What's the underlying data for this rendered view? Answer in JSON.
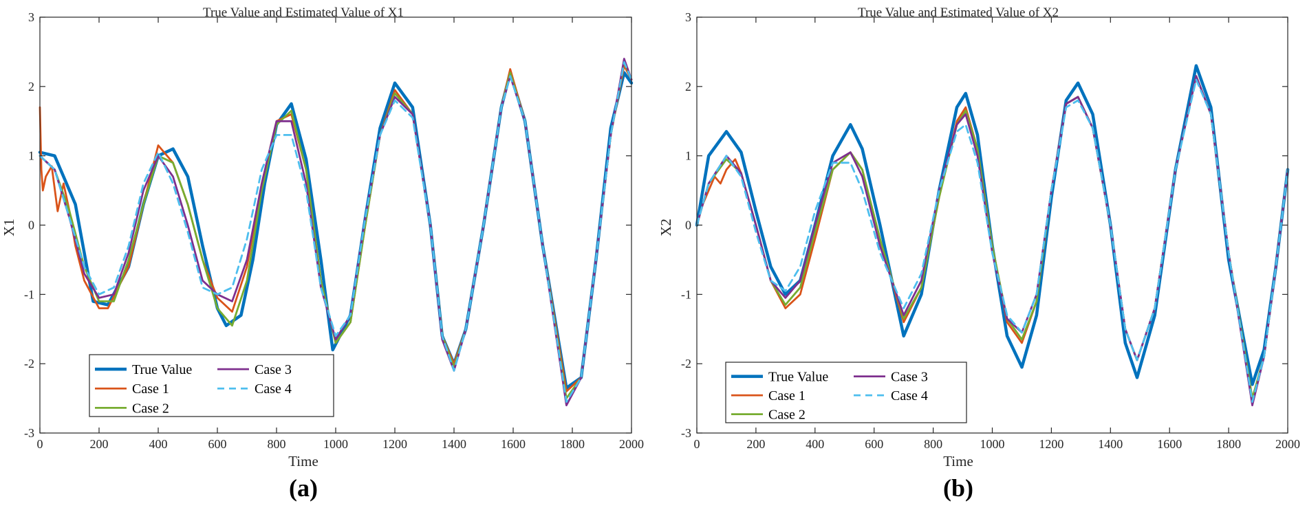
{
  "chart_data": [
    {
      "type": "line",
      "panel_label": "(a)",
      "title": "True Value and Estimated Value of X1",
      "xlabel": "Time",
      "ylabel": "X1",
      "xlim": [
        0,
        2000
      ],
      "ylim": [
        -3,
        3
      ],
      "xticks": [
        0,
        200,
        400,
        600,
        800,
        1000,
        1200,
        1400,
        1600,
        1800,
        2000
      ],
      "yticks": [
        -3,
        -2,
        -1,
        0,
        1,
        2,
        3
      ],
      "grid": false,
      "legend_position": "bottom-left",
      "series": [
        {
          "name": "True Value",
          "color": "#0072BD",
          "style": "solid",
          "width": "thick",
          "x": [
            0,
            50,
            120,
            180,
            230,
            300,
            350,
            400,
            450,
            500,
            550,
            600,
            630,
            680,
            720,
            760,
            800,
            850,
            900,
            950,
            990,
            1050,
            1100,
            1150,
            1200,
            1260,
            1320,
            1360,
            1400,
            1440,
            1500,
            1560,
            1590,
            1640,
            1700,
            1780,
            1830,
            1880,
            1930,
            1975,
            2000
          ],
          "y": [
            1.05,
            1.0,
            0.3,
            -1.1,
            -1.15,
            -0.6,
            0.3,
            1.0,
            1.1,
            0.7,
            -0.3,
            -1.2,
            -1.45,
            -1.3,
            -0.5,
            0.6,
            1.45,
            1.75,
            0.95,
            -0.5,
            -1.8,
            -1.3,
            0.1,
            1.4,
            2.05,
            1.7,
            0.0,
            -1.6,
            -2.0,
            -1.5,
            0.0,
            1.7,
            2.2,
            1.5,
            -0.3,
            -2.35,
            -2.2,
            -0.5,
            1.4,
            2.2,
            2.05
          ]
        },
        {
          "name": "Case 1",
          "color": "#D95319",
          "style": "solid",
          "width": "normal",
          "x": [
            0,
            5,
            10,
            20,
            40,
            60,
            80,
            100,
            120,
            150,
            200,
            230,
            300,
            350,
            400,
            450,
            500,
            550,
            600,
            650,
            700,
            750,
            800,
            850,
            900,
            950,
            1000,
            1050,
            1100,
            1150,
            1200,
            1260,
            1320,
            1360,
            1400,
            1440,
            1500,
            1560,
            1590,
            1640,
            1700,
            1780,
            1830,
            1880,
            1930,
            1975,
            2000
          ],
          "y": [
            1.7,
            0.8,
            0.5,
            0.7,
            0.85,
            0.2,
            0.6,
            0.2,
            -0.3,
            -0.8,
            -1.2,
            -1.2,
            -0.6,
            0.3,
            1.15,
            0.9,
            0.3,
            -0.5,
            -1.05,
            -1.25,
            -0.6,
            0.6,
            1.5,
            1.6,
            0.8,
            -0.8,
            -1.7,
            -1.4,
            0.0,
            1.3,
            1.95,
            1.6,
            0.0,
            -1.6,
            -2.0,
            -1.5,
            0.0,
            1.7,
            2.25,
            1.5,
            -0.3,
            -2.4,
            -2.2,
            -0.5,
            1.3,
            2.3,
            2.1
          ]
        },
        {
          "name": "Case 2",
          "color": "#77AC30",
          "style": "solid",
          "width": "normal",
          "x": [
            0,
            50,
            100,
            150,
            200,
            250,
            300,
            350,
            400,
            450,
            500,
            550,
            600,
            650,
            700,
            750,
            800,
            850,
            900,
            950,
            1000,
            1050,
            1100,
            1150,
            1200,
            1260,
            1320,
            1360,
            1400,
            1440,
            1500,
            1560,
            1590,
            1640,
            1700,
            1780,
            1830,
            1880,
            1930,
            1975,
            2000
          ],
          "y": [
            1.0,
            0.8,
            0.2,
            -0.6,
            -1.1,
            -1.1,
            -0.5,
            0.3,
            1.0,
            0.9,
            0.3,
            -0.5,
            -1.2,
            -1.45,
            -0.8,
            0.5,
            1.45,
            1.65,
            0.8,
            -0.8,
            -1.7,
            -1.4,
            0.0,
            1.3,
            1.9,
            1.6,
            0.0,
            -1.6,
            -2.05,
            -1.5,
            0.0,
            1.7,
            2.2,
            1.5,
            -0.3,
            -2.5,
            -2.2,
            -0.5,
            1.3,
            2.35,
            2.1
          ]
        },
        {
          "name": "Case 3",
          "color": "#7E2F8E",
          "style": "solid",
          "width": "normal",
          "x": [
            0,
            50,
            100,
            150,
            200,
            250,
            300,
            350,
            400,
            450,
            500,
            550,
            600,
            650,
            700,
            750,
            800,
            850,
            900,
            950,
            1000,
            1050,
            1100,
            1150,
            1200,
            1260,
            1320,
            1360,
            1400,
            1440,
            1500,
            1560,
            1590,
            1640,
            1700,
            1780,
            1830,
            1880,
            1930,
            1975,
            2000
          ],
          "y": [
            1.0,
            0.8,
            0.1,
            -0.7,
            -1.05,
            -1.0,
            -0.4,
            0.5,
            1.0,
            0.7,
            0.0,
            -0.8,
            -1.0,
            -1.1,
            -0.5,
            0.6,
            1.5,
            1.5,
            0.6,
            -0.9,
            -1.65,
            -1.3,
            0.1,
            1.3,
            1.85,
            1.6,
            0.0,
            -1.65,
            -2.1,
            -1.5,
            0.0,
            1.7,
            2.15,
            1.5,
            -0.3,
            -2.6,
            -2.2,
            -0.5,
            1.3,
            2.4,
            2.1
          ]
        },
        {
          "name": "Case 4",
          "color": "#4DBEEE",
          "style": "dashed",
          "width": "normal",
          "x": [
            0,
            50,
            100,
            150,
            200,
            250,
            300,
            350,
            400,
            450,
            500,
            550,
            600,
            650,
            700,
            750,
            800,
            850,
            900,
            950,
            1000,
            1050,
            1100,
            1150,
            1200,
            1260,
            1320,
            1360,
            1400,
            1440,
            1500,
            1560,
            1590,
            1640,
            1700,
            1780,
            1830,
            1880,
            1930,
            1975,
            2000
          ],
          "y": [
            1.0,
            0.8,
            0.1,
            -0.6,
            -1.0,
            -0.9,
            -0.3,
            0.6,
            1.05,
            0.6,
            -0.1,
            -0.9,
            -1.0,
            -0.9,
            -0.2,
            0.8,
            1.3,
            1.3,
            0.5,
            -0.9,
            -1.6,
            -1.3,
            0.1,
            1.3,
            1.8,
            1.55,
            0.0,
            -1.6,
            -2.1,
            -1.5,
            0.0,
            1.7,
            2.15,
            1.5,
            -0.3,
            -2.55,
            -2.2,
            -0.5,
            1.3,
            2.35,
            2.1
          ]
        }
      ]
    },
    {
      "type": "line",
      "panel_label": "(b)",
      "title": "True Value and Estimated Value of X2",
      "xlabel": "Time",
      "ylabel": "X2",
      "xlim": [
        0,
        2000
      ],
      "ylim": [
        -3,
        3
      ],
      "xticks": [
        0,
        200,
        400,
        600,
        800,
        1000,
        1200,
        1400,
        1600,
        1800,
        2000
      ],
      "yticks": [
        -3,
        -2,
        -1,
        0,
        1,
        2,
        3
      ],
      "grid": false,
      "legend_position": "bottom-left",
      "series": [
        {
          "name": "True Value",
          "color": "#0072BD",
          "style": "solid",
          "width": "thick",
          "x": [
            0,
            40,
            100,
            150,
            200,
            250,
            300,
            350,
            400,
            460,
            520,
            560,
            620,
            700,
            760,
            820,
            880,
            910,
            950,
            1000,
            1050,
            1100,
            1150,
            1200,
            1250,
            1290,
            1340,
            1400,
            1450,
            1490,
            1550,
            1620,
            1690,
            1740,
            1800,
            1880,
            1920,
            1960,
            2000
          ],
          "y": [
            0.0,
            1.0,
            1.35,
            1.05,
            0.2,
            -0.6,
            -1.0,
            -0.8,
            0.0,
            1.0,
            1.45,
            1.1,
            0.0,
            -1.6,
            -1.0,
            0.5,
            1.7,
            1.9,
            1.3,
            -0.3,
            -1.6,
            -2.05,
            -1.3,
            0.4,
            1.8,
            2.05,
            1.6,
            0.0,
            -1.7,
            -2.2,
            -1.3,
            0.8,
            2.3,
            1.7,
            -0.5,
            -2.3,
            -1.8,
            -0.6,
            0.8
          ]
        },
        {
          "name": "Case 1",
          "color": "#D95319",
          "style": "solid",
          "width": "normal",
          "x": [
            0,
            20,
            40,
            60,
            80,
            100,
            130,
            150,
            200,
            250,
            300,
            350,
            400,
            460,
            520,
            560,
            620,
            700,
            760,
            820,
            880,
            910,
            950,
            1000,
            1050,
            1100,
            1150,
            1200,
            1250,
            1290,
            1340,
            1400,
            1450,
            1490,
            1550,
            1620,
            1690,
            1740,
            1800,
            1880,
            1920,
            1960,
            2000
          ],
          "y": [
            0.0,
            0.3,
            0.5,
            0.7,
            0.6,
            0.8,
            0.95,
            0.75,
            0.0,
            -0.8,
            -1.2,
            -1.0,
            -0.2,
            0.8,
            1.05,
            0.8,
            -0.2,
            -1.4,
            -0.9,
            0.4,
            1.5,
            1.7,
            1.1,
            -0.3,
            -1.4,
            -1.7,
            -1.1,
            0.5,
            1.75,
            1.85,
            1.4,
            0.0,
            -1.5,
            -1.95,
            -1.2,
            0.8,
            2.15,
            1.6,
            -0.4,
            -2.5,
            -1.9,
            -0.6,
            0.8
          ]
        },
        {
          "name": "Case 2",
          "color": "#77AC30",
          "style": "solid",
          "width": "normal",
          "x": [
            0,
            40,
            100,
            150,
            200,
            250,
            300,
            350,
            400,
            460,
            520,
            560,
            620,
            700,
            760,
            820,
            880,
            910,
            950,
            1000,
            1050,
            1100,
            1150,
            1200,
            1250,
            1290,
            1340,
            1400,
            1450,
            1490,
            1550,
            1620,
            1690,
            1740,
            1800,
            1880,
            1920,
            1960,
            2000
          ],
          "y": [
            0.0,
            0.6,
            0.95,
            0.75,
            0.0,
            -0.8,
            -1.15,
            -0.9,
            -0.1,
            0.8,
            1.05,
            0.8,
            -0.2,
            -1.35,
            -0.9,
            0.4,
            1.45,
            1.65,
            1.1,
            -0.3,
            -1.35,
            -1.65,
            -1.1,
            0.5,
            1.75,
            1.85,
            1.4,
            0.0,
            -1.5,
            -1.95,
            -1.2,
            0.8,
            2.15,
            1.6,
            -0.4,
            -2.5,
            -1.9,
            -0.6,
            0.8
          ]
        },
        {
          "name": "Case 3",
          "color": "#7E2F8E",
          "style": "solid",
          "width": "normal",
          "x": [
            0,
            40,
            100,
            150,
            200,
            250,
            300,
            350,
            400,
            460,
            520,
            560,
            620,
            700,
            760,
            820,
            880,
            910,
            950,
            1000,
            1050,
            1100,
            1150,
            1200,
            1250,
            1290,
            1340,
            1400,
            1450,
            1490,
            1550,
            1620,
            1690,
            1740,
            1800,
            1880,
            1920,
            1960,
            2000
          ],
          "y": [
            0.0,
            0.6,
            1.0,
            0.75,
            0.0,
            -0.8,
            -1.05,
            -0.8,
            0.0,
            0.9,
            1.05,
            0.7,
            -0.3,
            -1.3,
            -0.8,
            0.5,
            1.45,
            1.6,
            1.0,
            -0.4,
            -1.35,
            -1.55,
            -1.0,
            0.5,
            1.75,
            1.85,
            1.4,
            0.0,
            -1.5,
            -1.95,
            -1.2,
            0.8,
            2.15,
            1.6,
            -0.4,
            -2.6,
            -1.9,
            -0.6,
            0.8
          ]
        },
        {
          "name": "Case 4",
          "color": "#4DBEEE",
          "style": "dashed",
          "width": "normal",
          "x": [
            0,
            40,
            100,
            150,
            200,
            250,
            300,
            350,
            400,
            460,
            520,
            560,
            620,
            700,
            760,
            820,
            880,
            910,
            950,
            1000,
            1050,
            1100,
            1150,
            1200,
            1250,
            1290,
            1340,
            1400,
            1450,
            1490,
            1550,
            1620,
            1690,
            1740,
            1800,
            1880,
            1920,
            1960,
            2000
          ],
          "y": [
            0.0,
            0.6,
            1.0,
            0.7,
            -0.1,
            -0.8,
            -0.95,
            -0.6,
            0.2,
            0.9,
            0.9,
            0.5,
            -0.4,
            -1.2,
            -0.7,
            0.5,
            1.35,
            1.45,
            0.9,
            -0.4,
            -1.3,
            -1.55,
            -1.0,
            0.5,
            1.7,
            1.8,
            1.4,
            0.0,
            -1.5,
            -1.95,
            -1.2,
            0.8,
            2.1,
            1.6,
            -0.4,
            -2.55,
            -1.9,
            -0.6,
            0.8
          ]
        }
      ]
    }
  ]
}
